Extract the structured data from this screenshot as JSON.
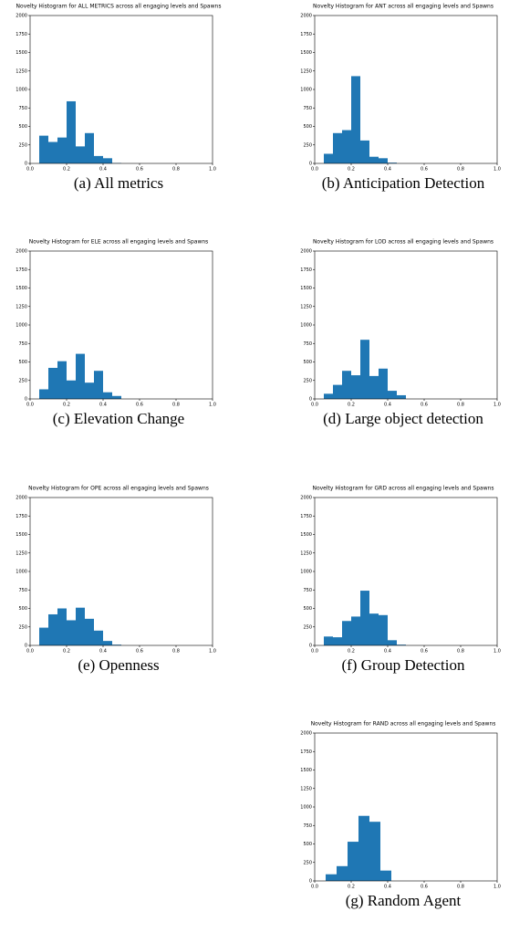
{
  "chart_data": [
    {
      "type": "histogram",
      "title": "Novelty Histogram for ALL METRICS across all engaging levels and Spawns",
      "caption": "(a) All metrics",
      "color": "#1f77b4",
      "bins": [
        0.05,
        0.1,
        0.15,
        0.2,
        0.25,
        0.3,
        0.35,
        0.4,
        0.45,
        0.5
      ],
      "counts": [
        375,
        290,
        350,
        840,
        230,
        410,
        100,
        70,
        5
      ],
      "xlim": [
        0,
        1
      ],
      "ylim": [
        0,
        2000
      ],
      "xticks": [
        {
          "value": 0,
          "label": "0.0"
        },
        0.2,
        0.4,
        0.6,
        0.8,
        {
          "value": 1,
          "label": "1.0"
        }
      ],
      "yticks": [
        0,
        250,
        500,
        750,
        1000,
        1250,
        1500,
        1750,
        2000
      ]
    },
    {
      "type": "histogram",
      "title": "Novelty Histogram for ANT across all engaging levels and Spawns",
      "caption": "(b) Anticipation Detection",
      "color": "#1f77b4",
      "bins": [
        0.05,
        0.1,
        0.15,
        0.2,
        0.25,
        0.3,
        0.35,
        0.4,
        0.45,
        0.5
      ],
      "counts": [
        130,
        410,
        450,
        1180,
        310,
        90,
        70,
        10,
        0
      ],
      "xlim": [
        0,
        1
      ],
      "ylim": [
        0,
        2000
      ],
      "xticks": [
        {
          "value": 0,
          "label": "0.0"
        },
        0.2,
        0.4,
        0.6,
        0.8,
        {
          "value": 1,
          "label": "1.0"
        }
      ],
      "yticks": [
        0,
        250,
        500,
        750,
        1000,
        1250,
        1500,
        1750,
        2000
      ]
    },
    {
      "type": "histogram",
      "title": "Novelty Histogram for ELE across all engaging levels and Spawns",
      "caption": "(c) Elevation Change",
      "color": "#1f77b4",
      "bins": [
        0.05,
        0.1,
        0.15,
        0.2,
        0.25,
        0.3,
        0.35,
        0.4,
        0.45,
        0.5
      ],
      "counts": [
        130,
        420,
        510,
        250,
        610,
        220,
        380,
        90,
        40
      ],
      "xlim": [
        0,
        1
      ],
      "ylim": [
        0,
        2000
      ],
      "xticks": [
        {
          "value": 0,
          "label": "0.0"
        },
        0.2,
        0.4,
        0.6,
        0.8,
        {
          "value": 1,
          "label": "1.0"
        }
      ],
      "yticks": [
        0,
        250,
        500,
        750,
        1000,
        1250,
        1500,
        1750,
        2000
      ]
    },
    {
      "type": "histogram",
      "title": "Novelty Histogram for LOD across all engaging levels and Spawns",
      "caption": "(d) Large object detection",
      "color": "#1f77b4",
      "bins": [
        0.05,
        0.1,
        0.15,
        0.2,
        0.25,
        0.3,
        0.35,
        0.4,
        0.45,
        0.5
      ],
      "counts": [
        70,
        190,
        380,
        320,
        800,
        310,
        410,
        110,
        50
      ],
      "xlim": [
        0,
        1
      ],
      "ylim": [
        0,
        2000
      ],
      "xticks": [
        {
          "value": 0,
          "label": "0.0"
        },
        0.2,
        0.4,
        0.6,
        0.8,
        {
          "value": 1,
          "label": "1.0"
        }
      ],
      "yticks": [
        0,
        250,
        500,
        750,
        1000,
        1250,
        1500,
        1750,
        2000
      ]
    },
    {
      "type": "histogram",
      "title": "Novelty Histogram for OPE across all engaging levels and Spawns",
      "caption": "(e) Openness",
      "color": "#1f77b4",
      "bins": [
        0.05,
        0.1,
        0.15,
        0.2,
        0.25,
        0.3,
        0.35,
        0.4,
        0.45,
        0.5
      ],
      "counts": [
        240,
        420,
        500,
        340,
        510,
        360,
        200,
        60,
        10
      ],
      "xlim": [
        0,
        1
      ],
      "ylim": [
        0,
        2000
      ],
      "xticks": [
        {
          "value": 0,
          "label": "0.0"
        },
        0.2,
        0.4,
        0.6,
        0.8,
        {
          "value": 1,
          "label": "1.0"
        }
      ],
      "yticks": [
        0,
        250,
        500,
        750,
        1000,
        1250,
        1500,
        1750,
        2000
      ]
    },
    {
      "type": "histogram",
      "title": "Novelty Histogram for GRD across all engaging levels and Spawns",
      "caption": "(f) Group Detection",
      "color": "#1f77b4",
      "bins": [
        0.05,
        0.1,
        0.15,
        0.2,
        0.25,
        0.3,
        0.35,
        0.4,
        0.45,
        0.5
      ],
      "counts": [
        120,
        110,
        330,
        390,
        740,
        430,
        410,
        70,
        10
      ],
      "xlim": [
        0,
        1
      ],
      "ylim": [
        0,
        2000
      ],
      "xticks": [
        {
          "value": 0,
          "label": "0.0"
        },
        0.2,
        0.4,
        0.6,
        0.8,
        {
          "value": 1,
          "label": "1.0"
        }
      ],
      "yticks": [
        0,
        250,
        500,
        750,
        1000,
        1250,
        1500,
        1750,
        2000
      ]
    },
    {
      "type": "histogram",
      "title": "Novelty Histogram for RAND across all engaging levels and Spawns",
      "caption": "(g) Random Agent",
      "color": "#1f77b4",
      "bins": [
        0.06,
        0.12,
        0.18,
        0.24,
        0.3,
        0.36,
        0.42
      ],
      "counts": [
        90,
        200,
        530,
        880,
        800,
        140
      ],
      "xlim": [
        0,
        1
      ],
      "ylim": [
        0,
        2000
      ],
      "xticks": [
        {
          "value": 0,
          "label": "0.0"
        },
        0.2,
        0.4,
        0.6,
        0.8,
        {
          "value": 1,
          "label": "1.0"
        }
      ],
      "yticks": [
        0,
        250,
        500,
        750,
        1000,
        1250,
        1500,
        1750,
        2000
      ]
    }
  ]
}
